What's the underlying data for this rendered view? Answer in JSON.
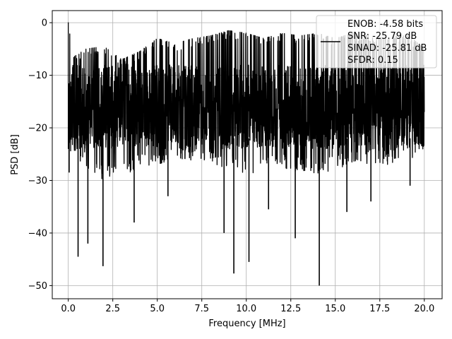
{
  "chart_data": {
    "type": "line",
    "title": "",
    "xlabel": "Frequency [MHz]",
    "ylabel": "PSD [dB]",
    "xlim": [
      -0.9,
      21.0
    ],
    "ylim": [
      -52.5,
      2.3
    ],
    "xticks": [
      0.0,
      2.5,
      5.0,
      7.5,
      10.0,
      12.5,
      15.0,
      17.5,
      20.0
    ],
    "xtick_labels": [
      "0.0",
      "2.5",
      "5.0",
      "7.5",
      "10.0",
      "12.5",
      "15.0",
      "17.5",
      "20.0"
    ],
    "yticks": [
      0,
      -10,
      -20,
      -30,
      -40,
      -50
    ],
    "ytick_labels": [
      "0",
      "−10",
      "−20",
      "−30",
      "−40",
      "−50"
    ],
    "grid": true,
    "legend_position": "top-right",
    "legend_entries": [
      "ENOB: -4.58 bits",
      "SNR: -25.79 dB",
      "SINAD: -25.81 dB",
      "SFDR: 0.15"
    ],
    "series": [
      {
        "color": "#000000",
        "upper_envelope": [
          [
            0.0,
            0.0
          ],
          [
            0.3,
            -6.5
          ],
          [
            1.0,
            -5.0
          ],
          [
            2.0,
            -4.5
          ],
          [
            3.0,
            -7.0
          ],
          [
            4.0,
            -5.5
          ],
          [
            5.0,
            -3.0
          ],
          [
            6.0,
            -4.0
          ],
          [
            7.0,
            -3.0
          ],
          [
            8.0,
            -2.5
          ],
          [
            9.0,
            -1.5
          ],
          [
            10.0,
            -2.0
          ],
          [
            11.0,
            -3.0
          ],
          [
            12.0,
            -2.0
          ],
          [
            13.0,
            -2.5
          ],
          [
            14.0,
            -2.0
          ],
          [
            15.0,
            -3.0
          ],
          [
            16.0,
            -2.0
          ],
          [
            17.0,
            -2.5
          ],
          [
            18.0,
            -3.0
          ],
          [
            19.0,
            -2.0
          ],
          [
            20.0,
            -5.0
          ]
        ],
        "typical_floor": [
          [
            0.0,
            -25.0
          ],
          [
            2.0,
            -30.0
          ],
          [
            4.0,
            -28.0
          ],
          [
            6.0,
            -26.0
          ],
          [
            8.0,
            -27.0
          ],
          [
            10.0,
            -29.0
          ],
          [
            12.0,
            -28.0
          ],
          [
            14.0,
            -29.0
          ],
          [
            16.0,
            -27.0
          ],
          [
            18.0,
            -27.0
          ],
          [
            20.0,
            -25.0
          ]
        ],
        "deep_nulls": [
          [
            0.05,
            -28.5
          ],
          [
            0.55,
            -44.5
          ],
          [
            1.1,
            -42.0
          ],
          [
            1.95,
            -46.3
          ],
          [
            3.7,
            -38.0
          ],
          [
            5.6,
            -33.0
          ],
          [
            8.75,
            -40.0
          ],
          [
            9.3,
            -47.7
          ],
          [
            10.15,
            -45.5
          ],
          [
            11.25,
            -35.5
          ],
          [
            12.75,
            -41.0
          ],
          [
            14.1,
            -50.0
          ],
          [
            15.65,
            -36.0
          ],
          [
            17.0,
            -34.0
          ],
          [
            19.2,
            -31.0
          ]
        ]
      }
    ]
  }
}
